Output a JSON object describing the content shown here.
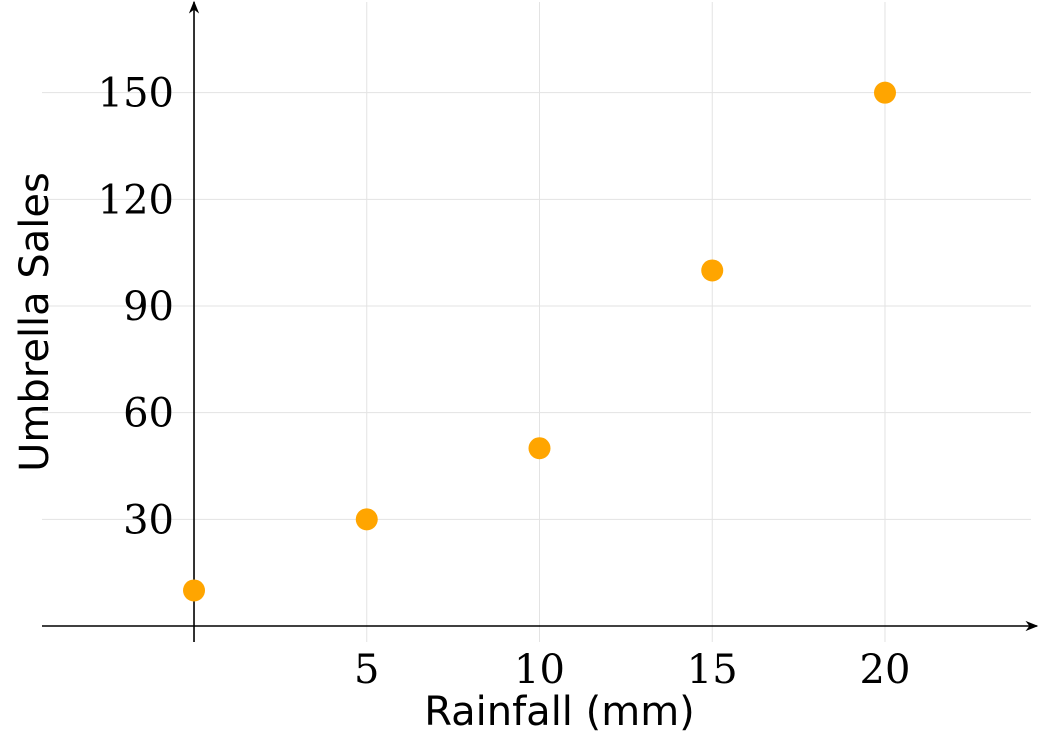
{
  "chart_data": {
    "type": "scatter",
    "title": "",
    "xlabel": "Rainfall (mm)",
    "ylabel": "Umbrella Sales",
    "x": [
      0,
      5,
      10,
      15,
      20
    ],
    "y": [
      10,
      30,
      50,
      100,
      150
    ],
    "xticks": [
      5,
      10,
      15,
      20
    ],
    "xtick_labels": [
      "5",
      "10",
      "15",
      "20"
    ],
    "yticks": [
      30,
      60,
      90,
      120,
      150
    ],
    "ytick_labels": [
      "30",
      "60",
      "90",
      "120",
      "150"
    ],
    "xlim": [
      -4.4,
      24.4
    ],
    "ylim": [
      -4.5,
      175.5
    ],
    "grid": true,
    "marker_color": "#FFA500"
  }
}
